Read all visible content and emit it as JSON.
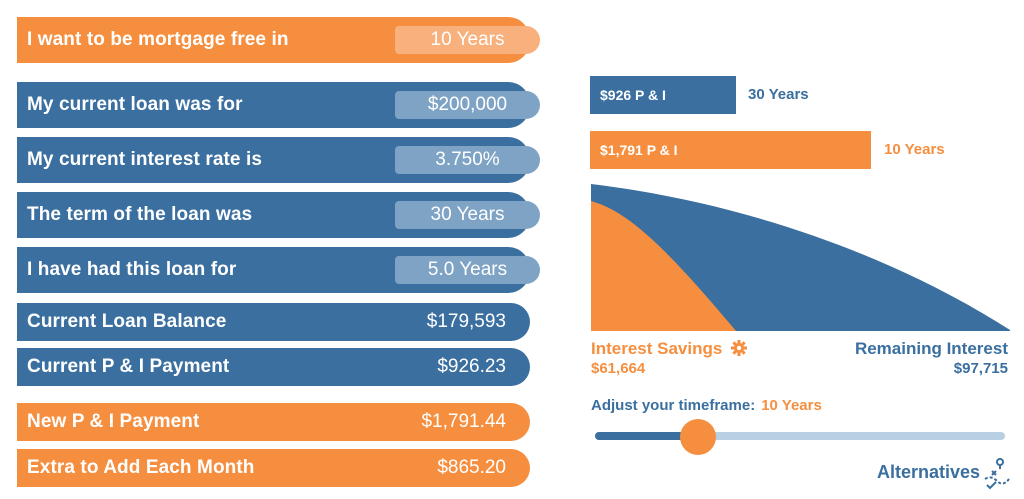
{
  "rows": [
    {
      "label": "I want to be mortgage free in",
      "value": "10 Years"
    },
    {
      "label": "My current loan was for",
      "value": "$200,000"
    },
    {
      "label": "My current interest rate is",
      "value": "3.750%"
    },
    {
      "label": "The term of the loan was",
      "value": "30 Years"
    },
    {
      "label": "I have had this loan for",
      "value": "5.0 Years"
    },
    {
      "label": "Current Loan Balance",
      "value": "$179,593"
    },
    {
      "label": "Current P & I Payment",
      "value": "$926.23"
    },
    {
      "label": "New P & I Payment",
      "value": "$1,791.44"
    },
    {
      "label": "Extra to Add Each Month",
      "value": "$865.20"
    }
  ],
  "bars": {
    "current": {
      "text": "$926 P & I",
      "term": "30 Years",
      "amount": 926
    },
    "new": {
      "text": "$1,791 P & I",
      "term": "10 Years",
      "amount": 1791
    }
  },
  "savings": {
    "label": "Interest Savings",
    "value": "$61,664",
    "icon": "gear-icon"
  },
  "remaining": {
    "label": "Remaining Interest",
    "value": "$97,715"
  },
  "adjust": {
    "label": "Adjust your timeframe:",
    "value": "10 Years",
    "slider_fraction": 0.25
  },
  "alternatives": {
    "label": "Alternatives",
    "icon": "route-icon"
  },
  "colors": {
    "orange": "#f58f3f",
    "blue": "#3a6f9f",
    "light_blue": "#b9cfe2"
  }
}
